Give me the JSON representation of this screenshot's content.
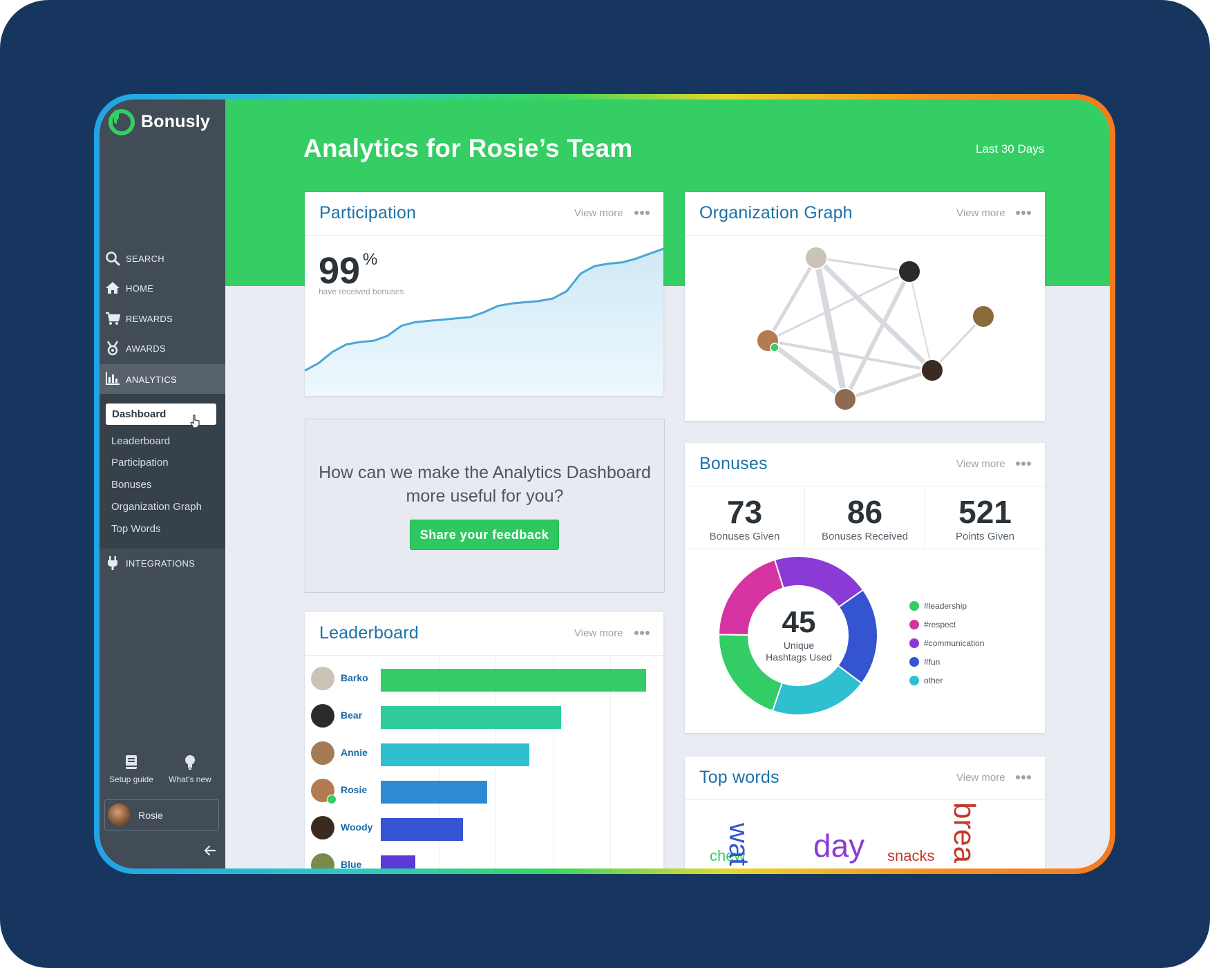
{
  "app": {
    "name": "Bonusly"
  },
  "sidebar": {
    "nav": [
      {
        "label": "SEARCH",
        "icon": "search-icon"
      },
      {
        "label": "HOME",
        "icon": "home-icon"
      },
      {
        "label": "REWARDS",
        "icon": "cart-icon"
      },
      {
        "label": "AWARDS",
        "icon": "medal-icon"
      },
      {
        "label": "ANALYTICS",
        "icon": "bar-chart-icon",
        "active": true
      },
      {
        "label": "INTEGRATIONS",
        "icon": "plug-icon"
      }
    ],
    "analytics_sub": [
      "Dashboard",
      "Leaderboard",
      "Participation",
      "Bonuses",
      "Organization Graph",
      "Top Words"
    ],
    "active_sub": "Dashboard",
    "setup_guide": "Setup guide",
    "whats_new": "What's new",
    "user": "Rosie"
  },
  "header": {
    "title": "Analytics for Rosie’s Team",
    "period": "Last 30 Days"
  },
  "participation": {
    "title": "Participation",
    "view_more": "View more",
    "value": "99",
    "unit": "%",
    "caption": "have received bonuses",
    "trend": [
      2,
      8,
      17,
      23,
      25,
      26,
      30,
      38,
      41,
      42,
      43,
      44,
      45,
      49,
      54,
      56,
      57,
      58,
      60,
      66,
      80,
      86,
      88,
      89,
      92,
      96,
      100
    ]
  },
  "org_graph": {
    "title": "Organization Graph",
    "view_more": "View more"
  },
  "feedback": {
    "question": "How can we make the Analytics Dashboard more useful for you?",
    "button": "Share your feedback"
  },
  "bonuses": {
    "title": "Bonuses",
    "view_more": "View more",
    "stats": [
      {
        "value": "73",
        "label": "Bonuses Given"
      },
      {
        "value": "86",
        "label": "Bonuses Received"
      },
      {
        "value": "521",
        "label": "Points Given"
      }
    ],
    "unique_hashtags": "45",
    "unique_label_1": "Unique",
    "unique_label_2": "Hashtags Used",
    "hashtags": [
      {
        "name": "#leadership",
        "color": "#33cc66",
        "share": 0.2
      },
      {
        "name": "#respect",
        "color": "#d633a3",
        "share": 0.2
      },
      {
        "name": "#communication",
        "color": "#8a3bd6",
        "share": 0.2
      },
      {
        "name": "#fun",
        "color": "#3554d1",
        "share": 0.2
      },
      {
        "name": "other",
        "color": "#2ec0cf",
        "share": 0.2
      }
    ]
  },
  "leaderboard": {
    "title": "Leaderboard",
    "view_more": "View more",
    "rows": [
      {
        "name": "Barko",
        "value": 100,
        "color": "#33cc66"
      },
      {
        "name": "Bear",
        "value": 68,
        "color": "#2ecc9a"
      },
      {
        "name": "Annie",
        "value": 56,
        "color": "#2ec0cf"
      },
      {
        "name": "Rosie",
        "value": 40,
        "color": "#2e8bd1"
      },
      {
        "name": "Woody",
        "value": 31,
        "color": "#3554d1"
      },
      {
        "name": "Blue",
        "value": 13,
        "color": "#5b3bd6"
      }
    ]
  },
  "top_words": {
    "title": "Top words",
    "view_more": "View more",
    "words": [
      {
        "text": "chew",
        "color": "#33cc66"
      },
      {
        "text": "wat",
        "color": "#3554d1"
      },
      {
        "text": "day",
        "color": "#8a3bd6"
      },
      {
        "text": "snacks",
        "color": "#c0392b"
      },
      {
        "text": "brea",
        "color": "#c0392b"
      }
    ]
  }
}
